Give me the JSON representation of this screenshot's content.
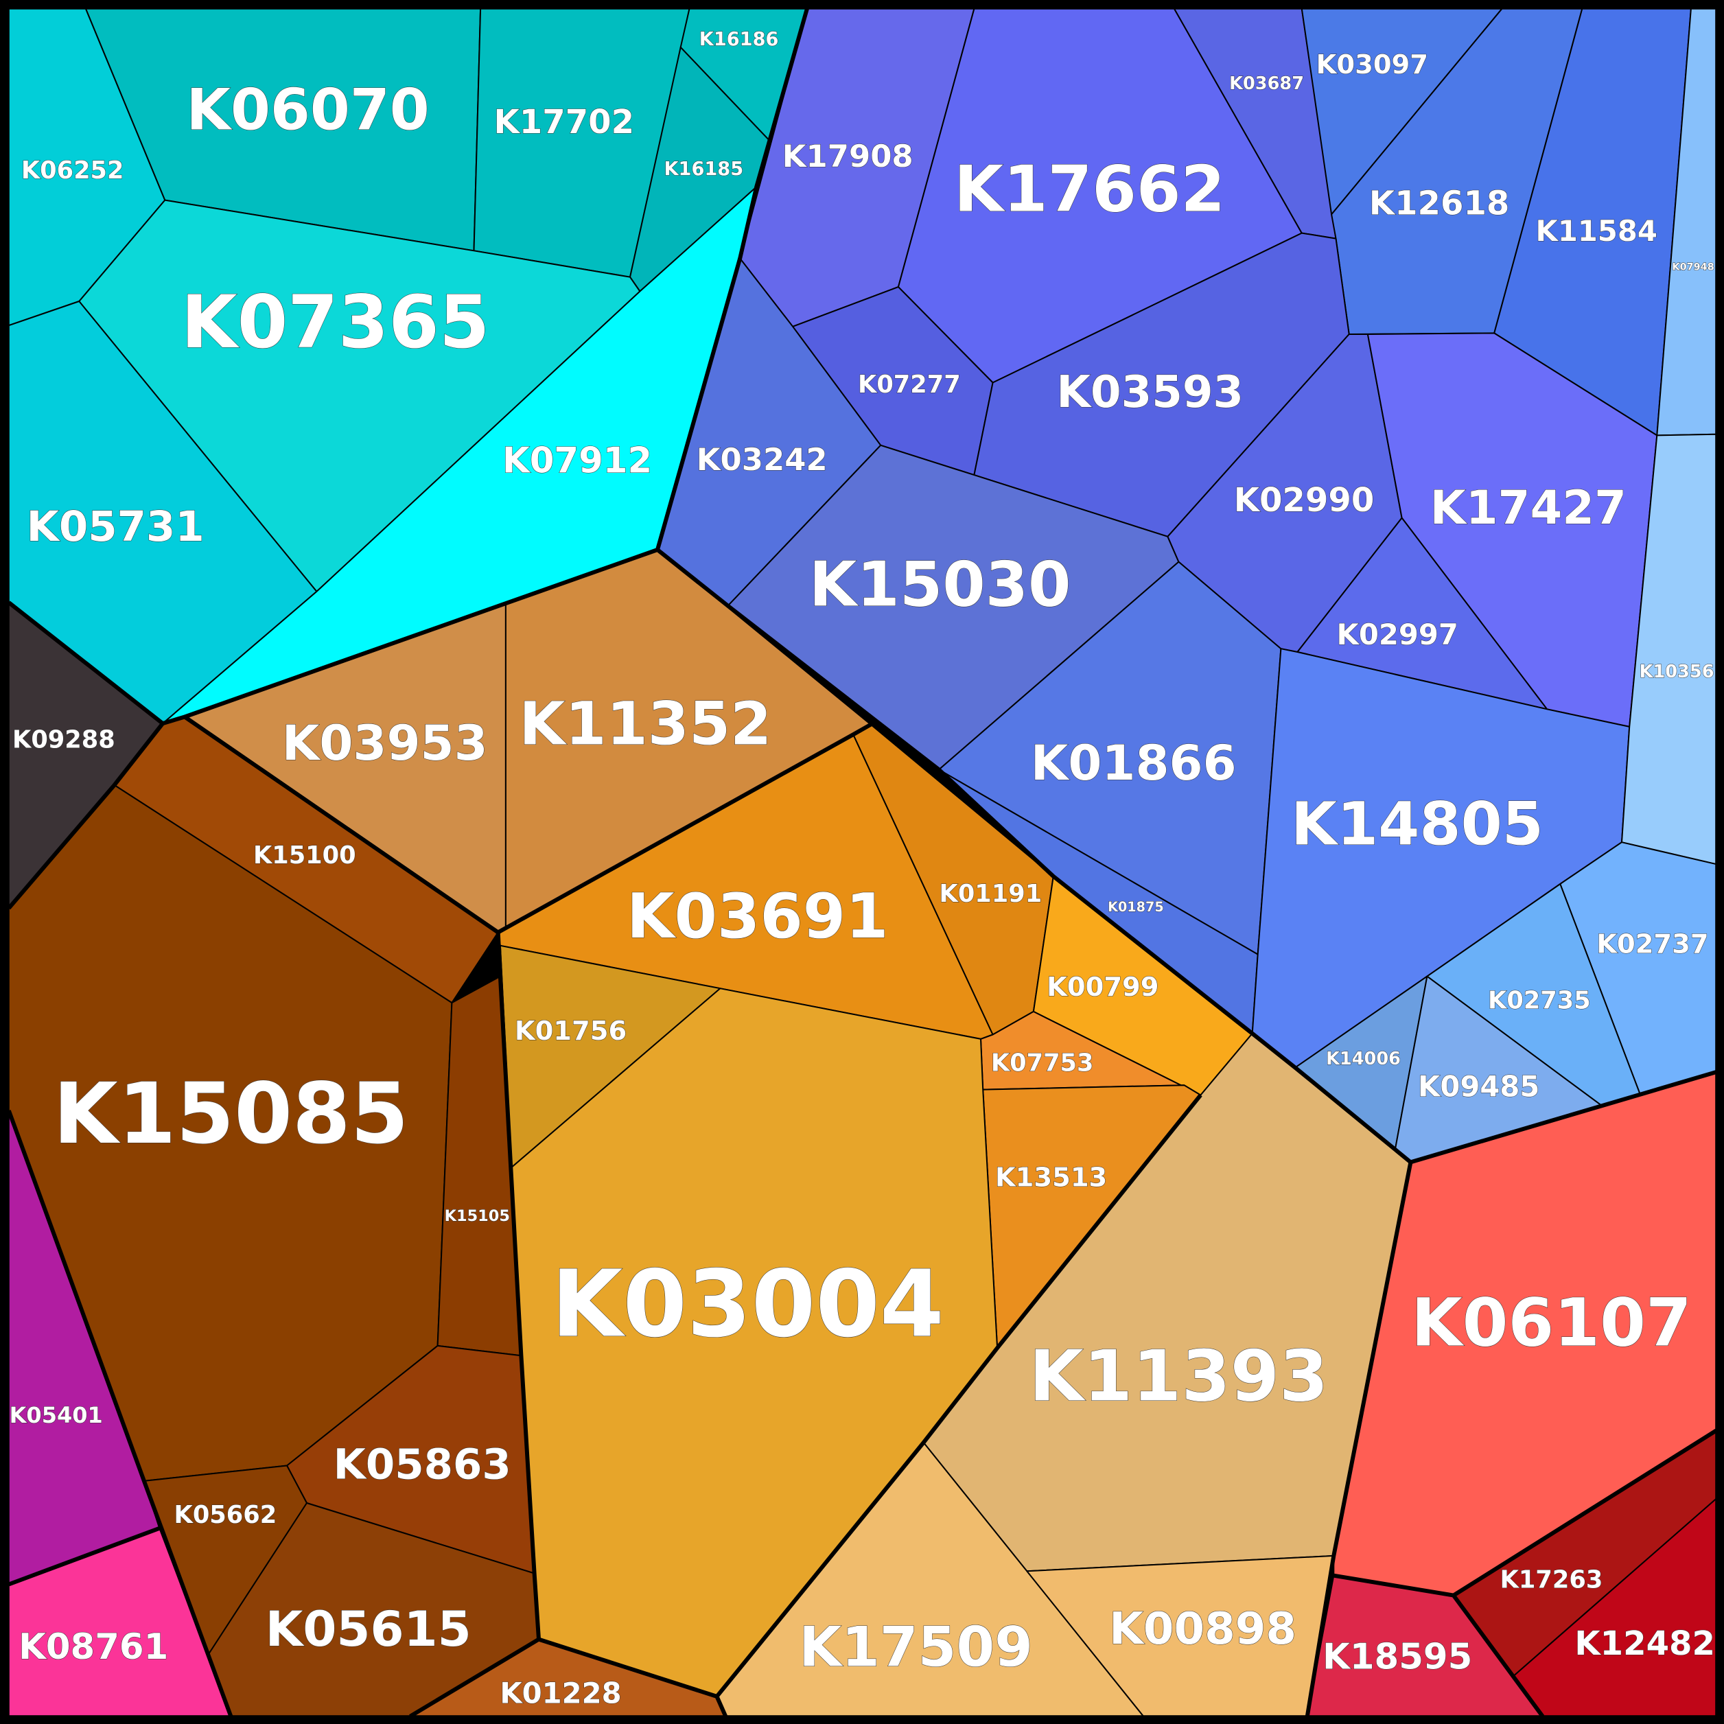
{
  "chart_data": {
    "type": "voronoi-treemap",
    "cells": [
      {
        "id": "K06252",
        "color": "#02ced8"
      },
      {
        "id": "K06070",
        "color": "#01bdbf"
      },
      {
        "id": "K17702",
        "color": "#01bdbf"
      },
      {
        "id": "K16186",
        "color": "#01bdbf"
      },
      {
        "id": "K16185",
        "color": "#01b5b9"
      },
      {
        "id": "K07365",
        "color": "#0cd8d8"
      },
      {
        "id": "K05731",
        "color": "#03cddc"
      },
      {
        "id": "K07912",
        "color": "#00fcff"
      },
      {
        "id": "K09288",
        "color": "#3b3336"
      },
      {
        "id": "K17908",
        "color": "#6669eb"
      },
      {
        "id": "K17662",
        "color": "#6168f3"
      },
      {
        "id": "K03687",
        "color": "#5a66e4"
      },
      {
        "id": "K03097",
        "color": "#4b7ae7"
      },
      {
        "id": "K12618",
        "color": "#4c79e8"
      },
      {
        "id": "K11584",
        "color": "#4873ea"
      },
      {
        "id": "K07948",
        "color": "#87c0fb"
      },
      {
        "id": "K07277",
        "color": "#555fe0"
      },
      {
        "id": "K03593",
        "color": "#5663e2"
      },
      {
        "id": "K03242",
        "color": "#5572de"
      },
      {
        "id": "K15030",
        "color": "#5d72d6"
      },
      {
        "id": "K02990",
        "color": "#5a67e6"
      },
      {
        "id": "K17427",
        "color": "#6b6ef9"
      },
      {
        "id": "K02997",
        "color": "#5c6bec"
      },
      {
        "id": "K01866",
        "color": "#5678e5"
      },
      {
        "id": "K01875",
        "color": "#5275e3"
      },
      {
        "id": "K14805",
        "color": "#5a82f4"
      },
      {
        "id": "K10356",
        "color": "#98ccfc"
      },
      {
        "id": "K02737",
        "color": "#72b2fd"
      },
      {
        "id": "K02735",
        "color": "#6ab0f8"
      },
      {
        "id": "K14006",
        "color": "#6b9ee0"
      },
      {
        "id": "K09485",
        "color": "#7dacee"
      },
      {
        "id": "K03953",
        "color": "#d08e49"
      },
      {
        "id": "K11352",
        "color": "#d28b3f"
      },
      {
        "id": "K15100",
        "color": "#a14a06"
      },
      {
        "id": "K15085",
        "color": "#8b4000"
      },
      {
        "id": "K15105",
        "color": "#8c3d01"
      },
      {
        "id": "K05863",
        "color": "#973e07"
      },
      {
        "id": "K05662",
        "color": "#8a3f02"
      },
      {
        "id": "K05615",
        "color": "#8d4006"
      },
      {
        "id": "K01228",
        "color": "#b85b18"
      },
      {
        "id": "K05401",
        "color": "#b11da1"
      },
      {
        "id": "K08761",
        "color": "#fb3498"
      },
      {
        "id": "K03691",
        "color": "#e88f14"
      },
      {
        "id": "K01191",
        "color": "#e08712"
      },
      {
        "id": "K00799",
        "color": "#f9a91b"
      },
      {
        "id": "K01756",
        "color": "#d39820"
      },
      {
        "id": "K07753",
        "color": "#f08d2b"
      },
      {
        "id": "K13513",
        "color": "#ea8f1e"
      },
      {
        "id": "K03004",
        "color": "#e7a52a"
      },
      {
        "id": "K11393",
        "color": "#e1b572"
      },
      {
        "id": "K17509",
        "color": "#f0bc6d"
      },
      {
        "id": "K00898",
        "color": "#f1bb6d"
      },
      {
        "id": "K06107",
        "color": "#ff5e54"
      },
      {
        "id": "K17263",
        "color": "#ac1514"
      },
      {
        "id": "K12482",
        "color": "#c00618"
      },
      {
        "id": "K18595",
        "color": "#dd284a"
      }
    ]
  }
}
